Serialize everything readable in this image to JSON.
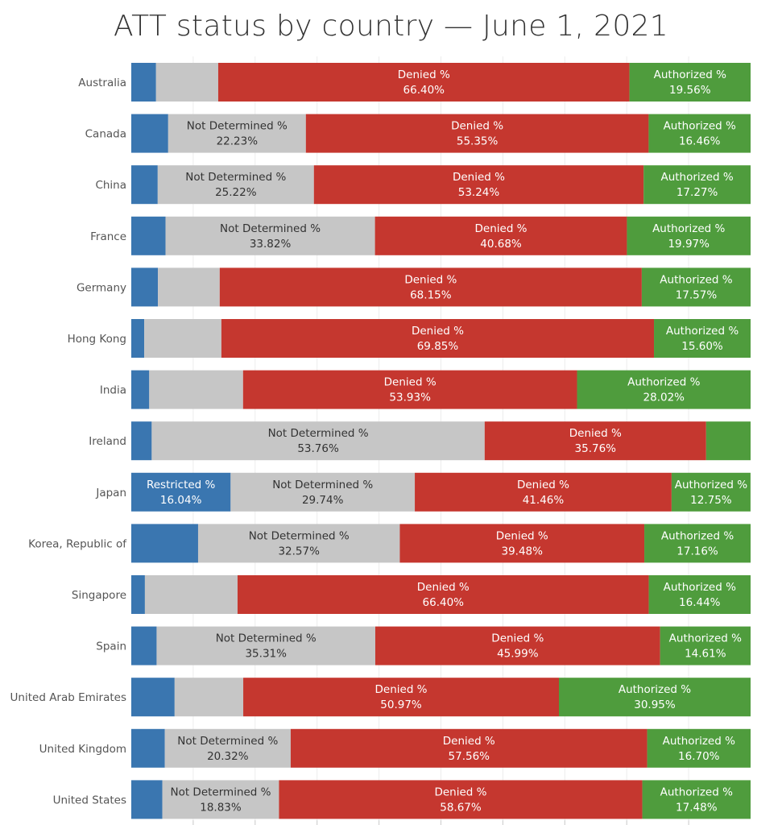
{
  "chart_data": {
    "type": "bar",
    "orientation": "horizontal",
    "stacked": "100%",
    "title": "ATT status by country — June 1, 2021",
    "xlim": [
      0,
      100
    ],
    "grid": true,
    "legend": "none",
    "categories": [
      "Australia",
      "Canada",
      "China",
      "France",
      "Germany",
      "Hong Kong",
      "India",
      "Ireland",
      "Japan",
      "Korea, Republic of",
      "Singapore",
      "Spain",
      "United Arab Emirates",
      "United Kingdom",
      "United States"
    ],
    "series": [
      {
        "name": "Restricted %",
        "color": "#3a76b0",
        "values": [
          4.0,
          5.96,
          4.27,
          5.53,
          4.3,
          2.1,
          2.9,
          3.3,
          16.04,
          10.79,
          2.2,
          4.09,
          7.0,
          5.42,
          5.02
        ],
        "labeled": [
          false,
          false,
          false,
          false,
          false,
          false,
          false,
          false,
          true,
          false,
          false,
          false,
          false,
          false,
          false
        ]
      },
      {
        "name": "Not Determined %",
        "color": "#c6c6c6",
        "values": [
          10.04,
          22.23,
          25.22,
          33.82,
          9.98,
          12.45,
          15.15,
          53.76,
          29.74,
          32.57,
          14.96,
          35.31,
          11.08,
          20.32,
          18.83
        ],
        "labeled": [
          false,
          true,
          true,
          true,
          false,
          false,
          false,
          true,
          true,
          true,
          false,
          true,
          false,
          true,
          true
        ]
      },
      {
        "name": "Denied %",
        "color": "#c5372f",
        "values": [
          66.4,
          55.35,
          53.24,
          40.68,
          68.15,
          69.85,
          53.93,
          35.76,
          41.46,
          39.48,
          66.4,
          45.99,
          50.97,
          57.56,
          58.67
        ],
        "labeled": [
          true,
          true,
          true,
          true,
          true,
          true,
          true,
          true,
          true,
          true,
          true,
          true,
          true,
          true,
          true
        ]
      },
      {
        "name": "Authorized %",
        "color": "#4f9c3d",
        "values": [
          19.56,
          16.46,
          17.27,
          19.97,
          17.57,
          15.6,
          28.02,
          7.18,
          12.75,
          17.16,
          16.44,
          14.61,
          30.95,
          16.7,
          17.48
        ],
        "labeled": [
          true,
          true,
          true,
          true,
          true,
          true,
          true,
          false,
          true,
          true,
          true,
          true,
          true,
          true,
          true
        ]
      }
    ]
  }
}
